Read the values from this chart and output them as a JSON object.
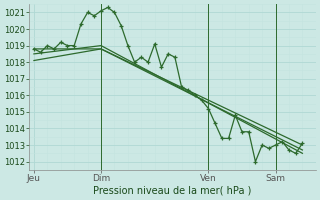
{
  "title": "Pression niveau de la mer( hPa )",
  "bg_color": "#cce8e4",
  "grid_major_color": "#b0d8d4",
  "grid_minor_color": "#c4e4e0",
  "line_color": "#2d6a2d",
  "vline_color": "#2d6a2d",
  "ylim": [
    1011.5,
    1021.5
  ],
  "yticks": [
    1012,
    1013,
    1014,
    1015,
    1016,
    1017,
    1018,
    1019,
    1020,
    1021
  ],
  "xtick_labels": [
    "Jeu",
    "Dim",
    "Ven",
    "Sam"
  ],
  "xtick_positions": [
    0,
    30,
    78,
    108
  ],
  "vline_positions": [
    30,
    78,
    108
  ],
  "xlim": [
    -2,
    126
  ],
  "series1_x": [
    0,
    3,
    6,
    9,
    12,
    15,
    18,
    21,
    24,
    27,
    30,
    33,
    36,
    39,
    42,
    45,
    48,
    51,
    54,
    57,
    60,
    63,
    66,
    69,
    72,
    75,
    78,
    81,
    84,
    87,
    90,
    93,
    96,
    99,
    102,
    105,
    108,
    111,
    114,
    117,
    120
  ],
  "series1_y": [
    1018.8,
    1018.6,
    1019.0,
    1018.8,
    1019.2,
    1019.0,
    1019.0,
    1020.3,
    1021.0,
    1020.8,
    1021.1,
    1021.3,
    1021.0,
    1020.2,
    1019.0,
    1018.0,
    1018.3,
    1018.0,
    1019.1,
    1017.7,
    1018.5,
    1018.3,
    1016.5,
    1016.3,
    1016.0,
    1015.7,
    1015.2,
    1014.3,
    1013.4,
    1013.4,
    1014.8,
    1013.8,
    1013.8,
    1012.0,
    1013.0,
    1012.8,
    1013.0,
    1013.2,
    1012.7,
    1012.5,
    1013.1
  ],
  "series2_x": [
    0,
    30,
    120
  ],
  "series2_y": [
    1018.8,
    1018.8,
    1012.7
  ],
  "series3_x": [
    0,
    30,
    120
  ],
  "series3_y": [
    1018.1,
    1018.8,
    1013.0
  ],
  "series4_x": [
    0,
    30,
    120
  ],
  "series4_y": [
    1018.5,
    1019.0,
    1012.5
  ]
}
